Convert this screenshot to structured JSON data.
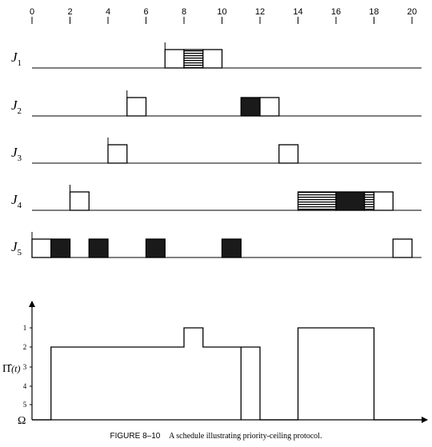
{
  "figure": {
    "caption_number": "FIGURE 8–10",
    "caption_text": "A schedule illustrating priority-ceiling protocol."
  },
  "time_axis": {
    "ticks": [
      0,
      2,
      4,
      6,
      8,
      10,
      12,
      14,
      16,
      18,
      20
    ],
    "tick_labels": [
      "0",
      "2",
      "4",
      "6",
      "8",
      "10",
      "12",
      "14",
      "16",
      "18",
      "20"
    ]
  },
  "colors": {
    "line": "#000000",
    "fill_dark": "#1a1a1a",
    "fill_white": "#ffffff"
  },
  "jobs": [
    {
      "letter": "J",
      "sub": "1",
      "release": 7,
      "segments": [
        {
          "start": 7,
          "end": 8,
          "fill": "white"
        },
        {
          "start": 8,
          "end": 9,
          "fill": "striped"
        },
        {
          "start": 9,
          "end": 10,
          "fill": "white"
        }
      ]
    },
    {
      "letter": "J",
      "sub": "2",
      "release": 5,
      "segments": [
        {
          "start": 5,
          "end": 6,
          "fill": "white"
        },
        {
          "start": 11,
          "end": 12,
          "fill": "black"
        },
        {
          "start": 12,
          "end": 13,
          "fill": "white"
        }
      ]
    },
    {
      "letter": "J",
      "sub": "3",
      "release": 4,
      "segments": [
        {
          "start": 4,
          "end": 5,
          "fill": "white"
        },
        {
          "start": 13,
          "end": 14,
          "fill": "white"
        }
      ]
    },
    {
      "letter": "J",
      "sub": "4",
      "release": 2,
      "segments": [
        {
          "start": 2,
          "end": 3,
          "fill": "white"
        },
        {
          "start": 14,
          "end": 16,
          "fill": "striped"
        },
        {
          "start": 16,
          "end": 17.5,
          "fill": "black"
        },
        {
          "start": 17.5,
          "end": 18,
          "fill": "striped"
        },
        {
          "start": 18,
          "end": 19,
          "fill": "white"
        }
      ]
    },
    {
      "letter": "J",
      "sub": "5",
      "release": 0,
      "segments": [
        {
          "start": 0,
          "end": 1,
          "fill": "white"
        },
        {
          "start": 1,
          "end": 2,
          "fill": "black"
        },
        {
          "start": 3,
          "end": 4,
          "fill": "black"
        },
        {
          "start": 6,
          "end": 7,
          "fill": "black"
        },
        {
          "start": 10,
          "end": 11,
          "fill": "black"
        },
        {
          "start": 19,
          "end": 20,
          "fill": "white"
        }
      ]
    }
  ],
  "ceiling_plot": {
    "y_label_main": "Π̂",
    "y_label_arg": "(t)",
    "y_bottom_label": "Ω",
    "y_ticks": [
      "1",
      "2",
      "3",
      "4",
      "5"
    ],
    "path": [
      [
        0,
        "Ω"
      ],
      [
        1,
        "Ω"
      ],
      [
        1,
        2
      ],
      [
        8,
        2
      ],
      [
        8,
        1
      ],
      [
        9,
        1
      ],
      [
        9,
        2
      ],
      [
        11,
        2
      ],
      [
        11,
        "Ω"
      ],
      [
        11,
        2
      ],
      [
        12,
        2
      ],
      [
        12,
        "Ω"
      ],
      [
        14,
        "Ω"
      ],
      [
        14,
        1
      ],
      [
        18,
        1
      ],
      [
        18,
        "Ω"
      ],
      [
        20.5,
        "Ω"
      ]
    ]
  }
}
